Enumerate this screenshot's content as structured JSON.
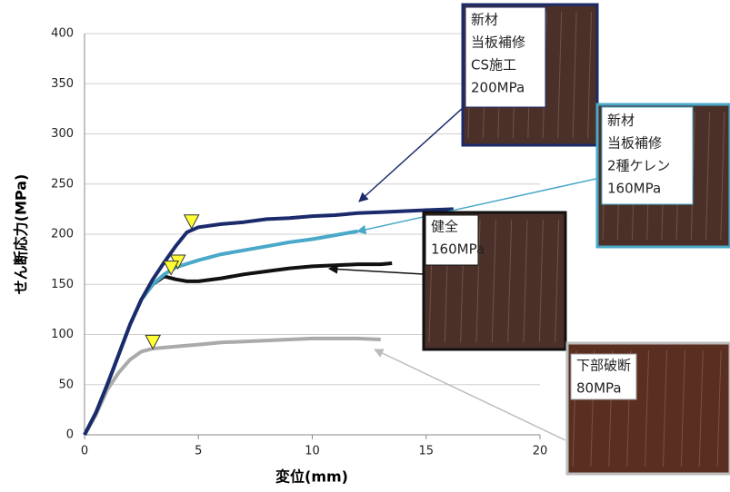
{
  "chart_data": {
    "type": "line",
    "y_label": "せん断応力(MPa)",
    "x_label": "変位(mm)",
    "xlim": [
      0,
      20
    ],
    "xticks": [
      0,
      5,
      10,
      15,
      20
    ],
    "ylim": [
      0,
      400
    ],
    "yticks": [
      0,
      50,
      100,
      150,
      200,
      250,
      300,
      350,
      400
    ],
    "grid": true,
    "series": [
      {
        "color": "#1b2a6b",
        "x": [
          0,
          0.5,
          1,
          1.5,
          2,
          2.5,
          3,
          3.5,
          4,
          4.5,
          5,
          6,
          7,
          8,
          9,
          10,
          11,
          12,
          13,
          14,
          15,
          16.2
        ],
        "values": [
          0,
          22,
          50,
          80,
          110,
          135,
          155,
          172,
          188,
          202,
          207,
          210,
          212,
          215,
          216,
          218,
          219,
          221,
          222,
          223,
          224,
          225
        ]
      },
      {
        "color": "#4aa8c8",
        "x": [
          0,
          0.5,
          1,
          1.5,
          2,
          2.5,
          3,
          3.5,
          4,
          5,
          6,
          7,
          8,
          9,
          10,
          11,
          12
        ],
        "values": [
          0,
          22,
          50,
          80,
          110,
          135,
          150,
          160,
          167,
          174,
          180,
          184,
          188,
          192,
          195,
          199,
          203
        ]
      },
      {
        "color": "#111111",
        "x": [
          0,
          0.5,
          1,
          1.5,
          2,
          2.5,
          3,
          3.5,
          4,
          4.5,
          5,
          6,
          7,
          8,
          9,
          10,
          11,
          12,
          13,
          13.5
        ],
        "values": [
          0,
          22,
          50,
          80,
          110,
          135,
          150,
          158,
          155,
          153,
          153,
          156,
          160,
          163,
          166,
          168,
          169,
          170,
          170,
          171
        ]
      },
      {
        "color": "#aaaaaa",
        "x": [
          0,
          0.5,
          1,
          1.5,
          2,
          2.5,
          3,
          4,
          5,
          6,
          7,
          8,
          9,
          10,
          11,
          12,
          13
        ],
        "values": [
          0,
          20,
          45,
          62,
          75,
          83,
          86,
          88,
          90,
          92,
          93,
          94,
          95,
          96,
          96,
          96,
          95
        ]
      }
    ],
    "markers": {
      "color": "#ffff33",
      "x": [
        4.7,
        4.1,
        3.8,
        3.0
      ],
      "y": [
        212,
        172,
        166,
        92
      ]
    },
    "annotations": [
      {
        "text": [
          "新材",
          "当板補修",
          "CS施工",
          "200MPa"
        ],
        "color": "#1b2a6b"
      },
      {
        "text": [
          "新材",
          "当板補修",
          "2種ケレン",
          "160MPa"
        ],
        "color": "#4aa8c8"
      },
      {
        "text": [
          "健全",
          "160MPa"
        ],
        "color": "#111111"
      },
      {
        "text": [
          "下部破断",
          "80MPa"
        ],
        "color": "#bbbbbb"
      }
    ]
  }
}
